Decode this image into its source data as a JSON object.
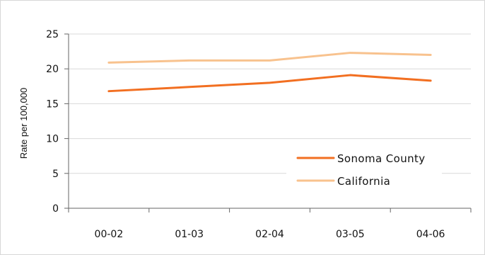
{
  "chart_data": {
    "type": "line",
    "title": "",
    "xlabel": "",
    "ylabel": "Rate per 100,000",
    "categories": [
      "00-02",
      "01-03",
      "02-04",
      "03-05",
      "04-06"
    ],
    "ylim": [
      0,
      25
    ],
    "yticks": [
      0,
      5,
      10,
      15,
      20,
      25
    ],
    "grid": true,
    "legend_position": "bottom-right",
    "series": [
      {
        "name": "Sonoma County",
        "values": [
          16.8,
          17.4,
          18.0,
          19.1,
          18.3
        ],
        "color": "#f26f21"
      },
      {
        "name": "California",
        "values": [
          20.9,
          21.2,
          21.2,
          22.3,
          22.0
        ],
        "color": "#f8c28e"
      }
    ]
  }
}
